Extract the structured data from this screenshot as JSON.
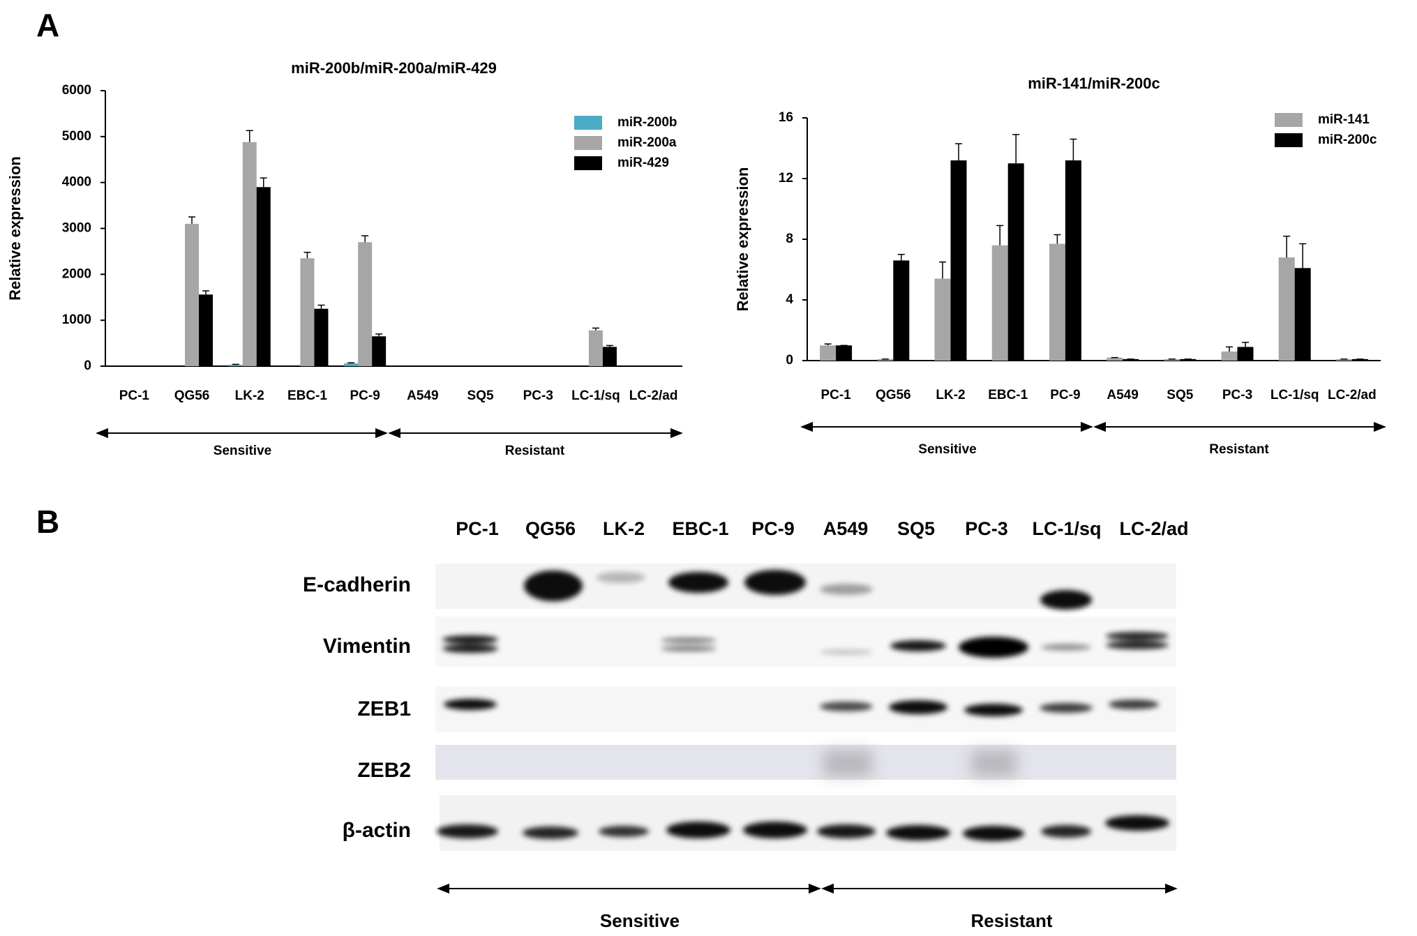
{
  "panels": [
    "A",
    "B"
  ],
  "chart_data": [
    {
      "type": "bar",
      "title": "miR-200b/miR-200a/miR-429",
      "y_label": "Relative expression",
      "categories": [
        "PC-1",
        "QG56",
        "LK-2",
        "EBC-1",
        "PC-9",
        "A549",
        "SQ5",
        "PC-3",
        "LC-1/sq",
        "LC-2/ad"
      ],
      "series": [
        {
          "name": "miR-200b",
          "color": "#4bacc6",
          "values": [
            0,
            0,
            30,
            0,
            60,
            0,
            0,
            0,
            0,
            0
          ],
          "errors": [
            0,
            0,
            10,
            0,
            15,
            0,
            0,
            0,
            0,
            0
          ]
        },
        {
          "name": "miR-200a",
          "color": "#a6a6a6",
          "values": [
            0,
            3100,
            4880,
            2350,
            2700,
            0,
            0,
            0,
            780,
            0
          ],
          "errors": [
            0,
            150,
            250,
            130,
            140,
            0,
            0,
            0,
            50,
            0
          ]
        },
        {
          "name": "miR-429",
          "color": "#000000",
          "values": [
            0,
            1560,
            3900,
            1250,
            650,
            0,
            0,
            0,
            420,
            0
          ],
          "errors": [
            0,
            80,
            200,
            80,
            50,
            0,
            0,
            0,
            30,
            0
          ]
        }
      ],
      "ylim": [
        0,
        6000
      ],
      "yticks": [
        0,
        1000,
        2000,
        3000,
        4000,
        5000,
        6000
      ],
      "legend": "upper right",
      "annotations": [
        "Sensitive",
        "Resistant"
      ]
    },
    {
      "type": "bar",
      "title": "miR-141/miR-200c",
      "y_label": "Relative expression",
      "categories": [
        "PC-1",
        "QG56",
        "LK-2",
        "EBC-1",
        "PC-9",
        "A549",
        "SQ5",
        "PC-3",
        "LC-1/sq",
        "LC-2/ad"
      ],
      "series": [
        {
          "name": "miR-141",
          "color": "#a6a6a6",
          "values": [
            1.0,
            0.1,
            5.4,
            7.6,
            7.7,
            0.2,
            0.1,
            0.6,
            6.8,
            0.1
          ],
          "errors": [
            0.1,
            0,
            1.1,
            1.3,
            0.6,
            0,
            0,
            0.3,
            1.4,
            0
          ]
        },
        {
          "name": "miR-200c",
          "color": "#000000",
          "values": [
            1.0,
            6.6,
            13.2,
            13.0,
            13.2,
            0.1,
            0.1,
            0.9,
            6.1,
            0.1
          ],
          "errors": [
            0,
            0.4,
            1.1,
            1.9,
            1.4,
            0,
            0,
            0.3,
            1.6,
            0
          ]
        }
      ],
      "ylim": [
        0,
        16
      ],
      "yticks": [
        0,
        4,
        8,
        12,
        16
      ],
      "legend": "upper right",
      "annotations": [
        "Sensitive",
        "Resistant"
      ]
    }
  ],
  "blot": {
    "lanes": [
      "PC-1",
      "QG56",
      "LK-2",
      "EBC-1",
      "PC-9",
      "A549",
      "SQ5",
      "PC-3",
      "LC-1/sq",
      "LC-2/ad"
    ],
    "rows": [
      "E-cadherin",
      "Vimentin",
      "ZEB1",
      "ZEB2",
      "β-actin"
    ],
    "groups": [
      "Sensitive",
      "Resistant"
    ]
  }
}
